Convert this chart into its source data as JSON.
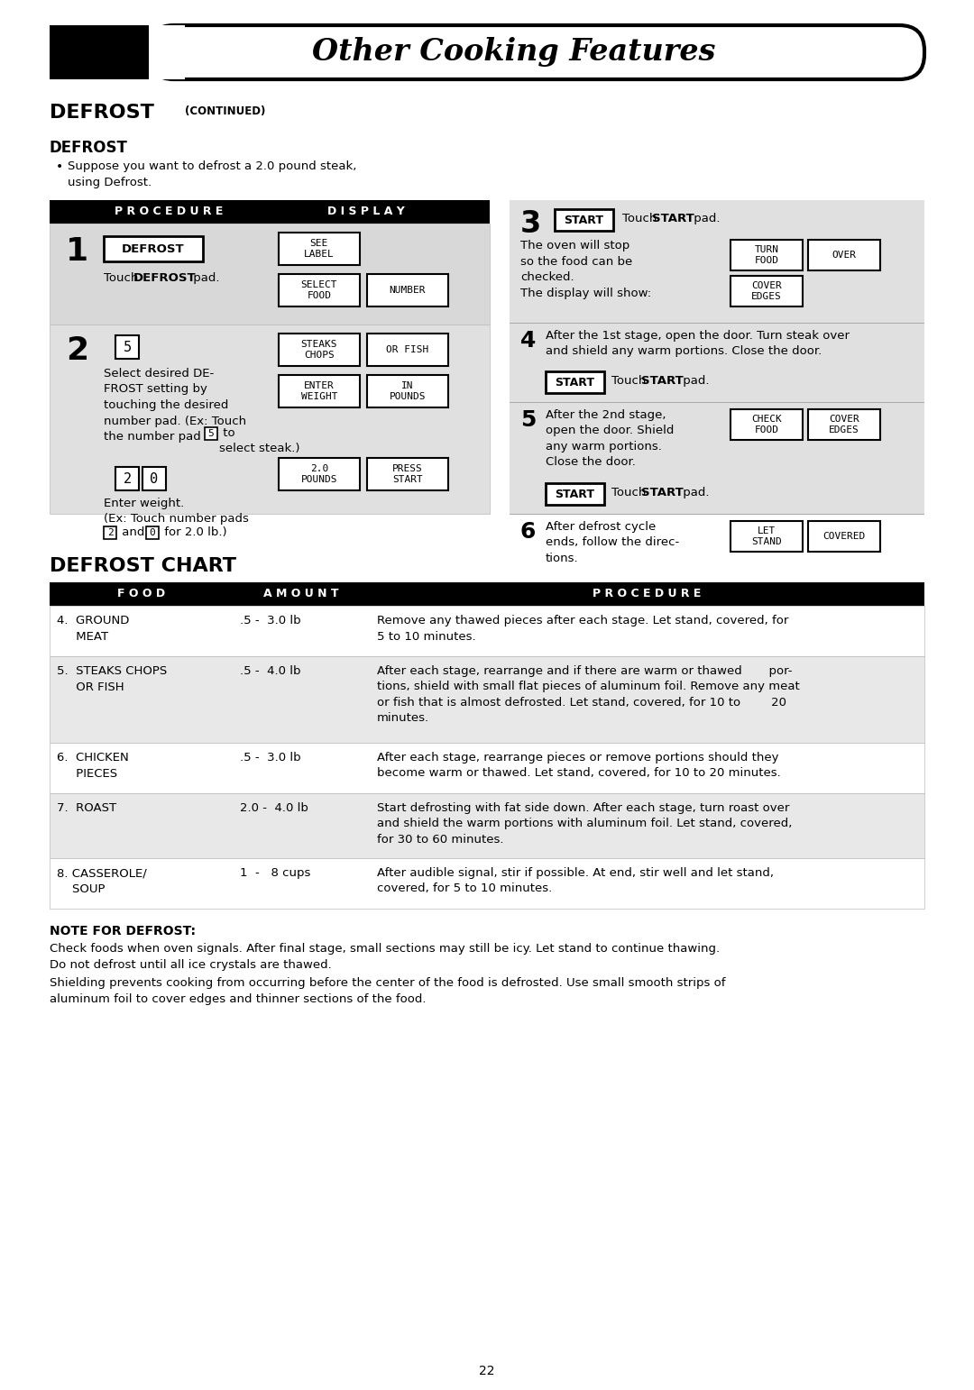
{
  "page_bg": "#ffffff",
  "header_text": "Other Cooking Features",
  "section_title1": "DEFROST",
  "section_title1_cont": "(CONTINUED)",
  "section_title2": "DEFROST",
  "bullet_text": "Suppose you want to defrost a 2.0 pound steak,\nusing Defrost.",
  "proc_disp_header": [
    "P R O C E D U R E",
    "D I S P L A Y"
  ],
  "chart_title": "DEFROST CHART",
  "chart_headers": [
    "F O O D",
    "A M O U N T",
    "P R O C E D U R E"
  ],
  "chart_rows": [
    {
      "food": "4.  GROUND\n     MEAT",
      "amount": ".5 -  3.0 lb",
      "procedure": "Remove any thawed pieces after each stage. Let stand, covered, for\n5 to 10 minutes."
    },
    {
      "food": "5.  STEAKS CHOPS\n     OR FISH",
      "amount": ".5 -  4.0 lb",
      "procedure": "After each stage, rearrange and if there are warm or thawed       por-\ntions, shield with small flat pieces of aluminum foil. Remove any meat\nor fish that is almost defrosted. Let stand, covered, for 10 to        20\nminutes."
    },
    {
      "food": "6.  CHICKEN\n     PIECES",
      "amount": ".5 -  3.0 lb",
      "procedure": "After each stage, rearrange pieces or remove portions should they\nbecome warm or thawed. Let stand, covered, for 10 to 20 minutes."
    },
    {
      "food": "7.  ROAST",
      "amount": "2.0 -  4.0 lb",
      "procedure": "Start defrosting with fat side down. After each stage, turn roast over\nand shield the warm portions with aluminum foil. Let stand, covered,\nfor 30 to 60 minutes."
    },
    {
      "food": "8. CASSEROLE/\n    SOUP",
      "amount": "1  -   8 cups",
      "procedure": "After audible signal, stir if possible. At end, stir well and let stand,\ncovered, for 5 to 10 minutes."
    }
  ],
  "note_title": "NOTE FOR DEFROST:",
  "note_text1": "Check foods when oven signals. After final stage, small sections may still be icy. Let stand to continue thawing.\nDo not defrost until all ice crystals are thawed.",
  "note_text2": "Shielding prevents cooking from occurring before the center of the food is defrosted. Use small smooth strips of\naluminum foil to cover edges and thinner sections of the food.",
  "page_number": "22"
}
